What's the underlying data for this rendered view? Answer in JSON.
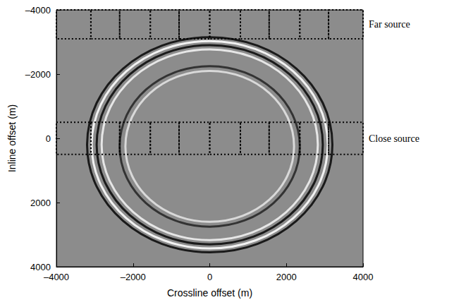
{
  "chart_data": {
    "type": "seismic_image",
    "x_label": "Crossline offset (m)",
    "y_label": "Inline offset (m)",
    "xlim": [
      -4000,
      4000
    ],
    "ylim": [
      4000,
      -4000
    ],
    "xticks": [
      {
        "value": -4000,
        "label": "–4000"
      },
      {
        "value": -2000,
        "label": "–2000"
      },
      0,
      2000,
      4000
    ],
    "yticks": [
      {
        "value": -4000,
        "label": "–4000"
      },
      {
        "value": -2000,
        "label": "–2000"
      },
      0,
      2000,
      4000
    ],
    "wavefronts": [
      {
        "center": [
          0,
          200
        ],
        "radii": [
          3200,
          3350
        ],
        "color": "#1a1a1a"
      },
      {
        "center": [
          0,
          200
        ],
        "radii": [
          3080,
          3230
        ],
        "color": "#f2f2f2"
      },
      {
        "center": [
          0,
          200
        ],
        "radii": [
          2950,
          3100
        ],
        "color": "#1a1a1a"
      },
      {
        "center": [
          0,
          200
        ],
        "radii": [
          2820,
          2970
        ],
        "color": "#e6e6e6"
      },
      {
        "center": [
          0,
          250
        ],
        "radii": [
          2350,
          2500
        ],
        "color": "#333333"
      },
      {
        "center": [
          0,
          250
        ],
        "radii": [
          2200,
          2350
        ],
        "color": "#d9d9d9"
      }
    ],
    "boxes": [
      {
        "label": "Far source",
        "y_range": [
          -4000,
          -3100
        ],
        "x_edges": [
          -4000,
          -3100,
          -2350,
          -1550,
          -800,
          0,
          800,
          1550,
          2350,
          3100,
          4000
        ]
      },
      {
        "label": "Close source",
        "y_range": [
          -500,
          500
        ],
        "x_edges": [
          -4000,
          -3100,
          -2350,
          -1550,
          -800,
          0,
          800,
          1550,
          2350,
          3100,
          4000
        ]
      }
    ]
  }
}
